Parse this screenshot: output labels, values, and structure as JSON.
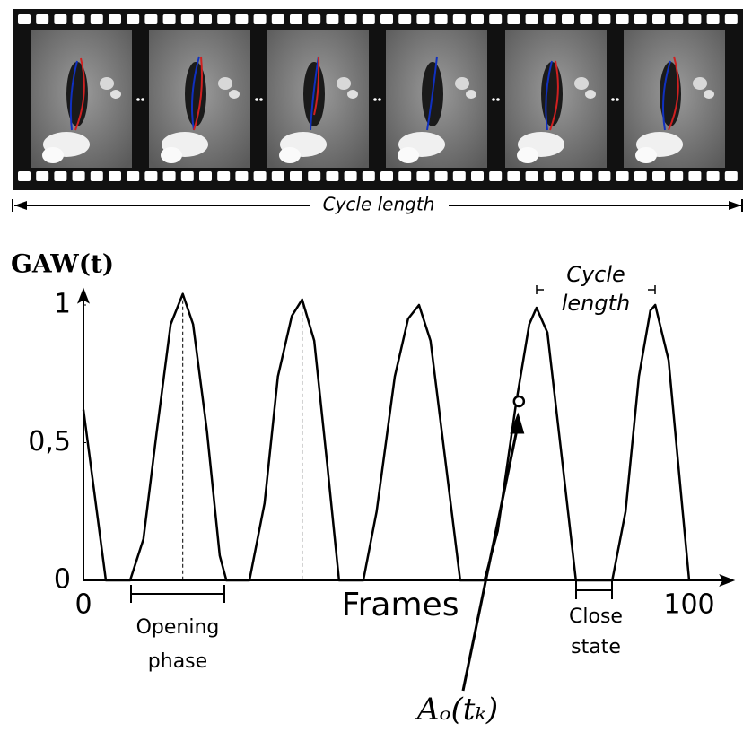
{
  "chart_data": {
    "type": "line",
    "y_label": "GAW(t)",
    "x_label": "Frames",
    "annotations": {
      "film_cycle": "Cycle length",
      "plot_cycle": "Cycle length",
      "opening": "Opening phase",
      "close": "Close state",
      "point": "Aₒ(tₖ)"
    },
    "x": [
      0,
      3.7,
      7.7,
      9.9,
      12.1,
      14.4,
      16.4,
      18.1,
      20.4,
      22.5,
      23.6,
      27.4,
      29.9,
      32.1,
      34.4,
      36.1,
      38.1,
      40.3,
      42.2,
      46.2,
      48.4,
      51.4,
      53.6,
      55.4,
      57.3,
      59.5,
      62.2,
      66.2,
      68.4,
      71.4,
      73.6,
      74.8,
      76.6,
      78.8,
      81.3,
      87.3,
      89.5,
      91.7,
      93.6,
      94.4,
      96.6,
      98.8,
      100
    ],
    "series": [
      {
        "color": "#000000",
        "values": [
          0.62,
          0,
          0,
          0.15,
          0.54,
          0.93,
          1.04,
          0.93,
          0.54,
          0.09,
          0,
          0,
          0.28,
          0.74,
          0.96,
          1.02,
          0.87,
          0.41,
          0,
          0,
          0.25,
          0.74,
          0.95,
          1.0,
          0.87,
          0.48,
          0,
          0,
          0.18,
          0.64,
          0.93,
          0.99,
          0.9,
          0.48,
          0,
          0,
          0.25,
          0.74,
          0.98,
          1.0,
          0.8,
          0.28,
          0
        ]
      }
    ],
    "highlight_point": {
      "x": 71.9,
      "y": 0.65
    },
    "xlim": [
      0,
      107
    ],
    "ylim": [
      0,
      1.05
    ],
    "xticks": [
      0,
      100
    ],
    "yticks": [
      0,
      {
        "value": 0.5,
        "label": "0,5"
      },
      1
    ]
  }
}
